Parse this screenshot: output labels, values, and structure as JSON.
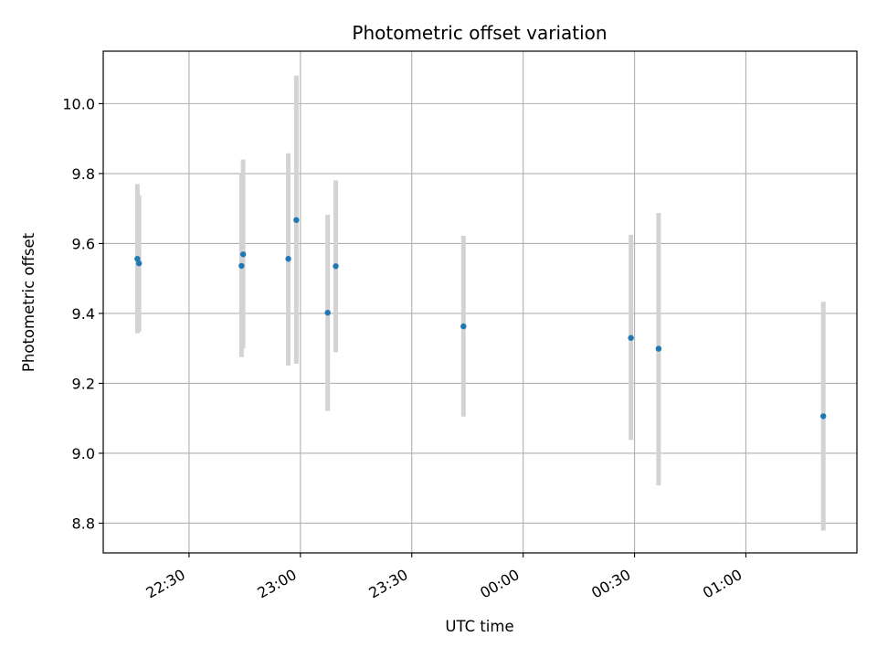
{
  "chart_data": {
    "type": "scatter",
    "title": "Photometric offset variation",
    "xlabel": "UTC time",
    "ylabel": "Photometric offset",
    "x_axis_kind": "time",
    "x_ticks": [
      "22:30",
      "23:00",
      "23:30",
      "00:00",
      "00:30",
      "01:00"
    ],
    "y_ticks": [
      "8.8",
      "9.0",
      "9.2",
      "9.4",
      "9.6",
      "9.8",
      "10.0"
    ],
    "ylim": [
      8.715,
      10.15
    ],
    "xlim": [
      "22:06:53",
      "01:29:54"
    ],
    "grid": true,
    "marker_color": "#1f77b4",
    "errorbar_color": "#d3d3d3",
    "series": [
      {
        "points": [
          {
            "x": "22:16:05",
            "y": 9.556,
            "err_low": 9.343,
            "err_high": 9.77
          },
          {
            "x": "22:16:31",
            "y": 9.543,
            "err_low": 9.348,
            "err_high": 9.738
          },
          {
            "x": "22:44:08",
            "y": 9.536,
            "err_low": 9.275,
            "err_high": 9.8
          },
          {
            "x": "22:44:34",
            "y": 9.569,
            "err_low": 9.3,
            "err_high": 9.84
          },
          {
            "x": "22:56:44",
            "y": 9.556,
            "err_low": 9.251,
            "err_high": 9.858
          },
          {
            "x": "22:58:54",
            "y": 9.667,
            "err_low": 9.256,
            "err_high": 10.08
          },
          {
            "x": "23:07:21",
            "y": 9.402,
            "err_low": 9.121,
            "err_high": 9.682
          },
          {
            "x": "23:09:31",
            "y": 9.535,
            "err_low": 9.289,
            "err_high": 9.78
          },
          {
            "x": "23:43:55",
            "y": 9.363,
            "err_low": 9.105,
            "err_high": 9.622
          },
          {
            "x": "00:29:02",
            "y": 9.33,
            "err_low": 9.038,
            "err_high": 9.625
          },
          {
            "x": "00:36:29",
            "y": 9.299,
            "err_low": 8.908,
            "err_high": 9.687
          },
          {
            "x": "01:20:51",
            "y": 9.106,
            "err_low": 8.779,
            "err_high": 9.433
          }
        ]
      }
    ]
  }
}
